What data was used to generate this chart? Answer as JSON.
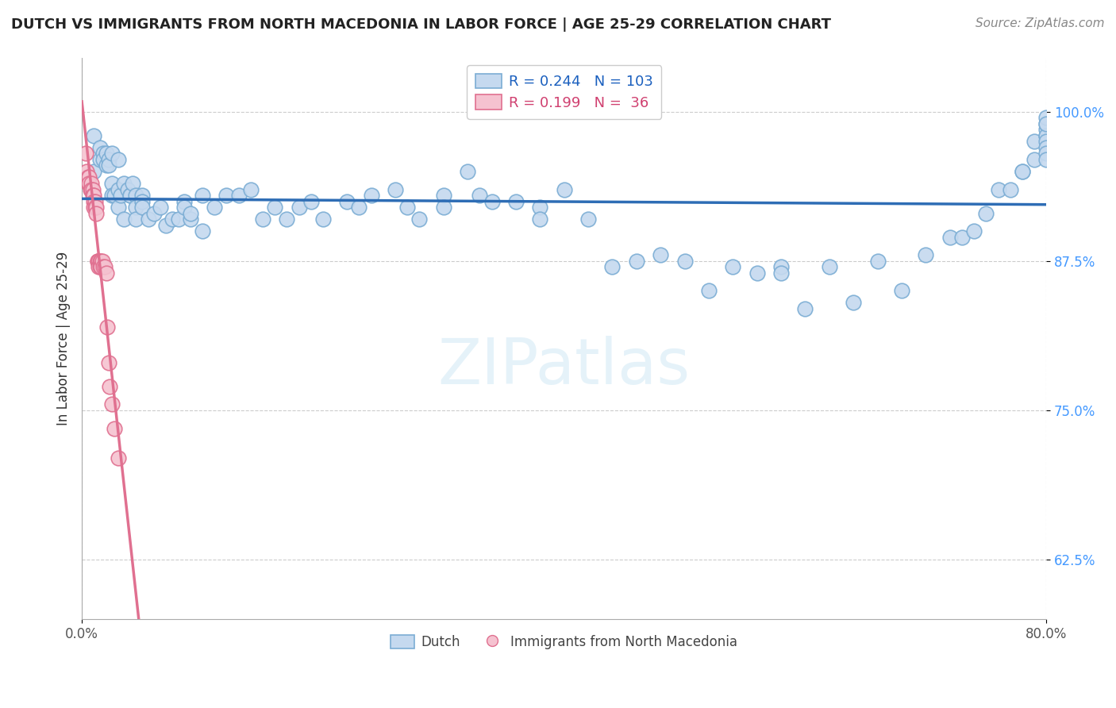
{
  "title": "DUTCH VS IMMIGRANTS FROM NORTH MACEDONIA IN LABOR FORCE | AGE 25-29 CORRELATION CHART",
  "source": "Source: ZipAtlas.com",
  "ylabel": "In Labor Force | Age 25-29",
  "x_range": [
    0.0,
    0.8
  ],
  "y_range": [
    0.575,
    1.045
  ],
  "legend_dutch_R": "0.244",
  "legend_dutch_N": "103",
  "legend_mac_R": "0.199",
  "legend_mac_N": " 36",
  "dutch_color": "#c5d9ef",
  "dutch_edge_color": "#7badd4",
  "dutch_trendline_color": "#2e6db5",
  "mac_color": "#f5c2d0",
  "mac_edge_color": "#e07090",
  "mac_trendline_color": "#e07090",
  "watermark": "ZIPatlas",
  "grid_color": "#cccccc",
  "background_color": "#ffffff",
  "dutch_x": [
    0.01,
    0.01,
    0.015,
    0.015,
    0.018,
    0.018,
    0.02,
    0.02,
    0.022,
    0.022,
    0.025,
    0.025,
    0.025,
    0.027,
    0.03,
    0.03,
    0.03,
    0.032,
    0.035,
    0.035,
    0.038,
    0.04,
    0.04,
    0.042,
    0.045,
    0.045,
    0.045,
    0.05,
    0.05,
    0.05,
    0.055,
    0.06,
    0.065,
    0.07,
    0.075,
    0.08,
    0.085,
    0.085,
    0.09,
    0.09,
    0.1,
    0.1,
    0.11,
    0.12,
    0.13,
    0.14,
    0.15,
    0.16,
    0.17,
    0.18,
    0.19,
    0.2,
    0.22,
    0.23,
    0.24,
    0.26,
    0.27,
    0.28,
    0.3,
    0.3,
    0.32,
    0.33,
    0.34,
    0.36,
    0.38,
    0.38,
    0.4,
    0.42,
    0.44,
    0.46,
    0.48,
    0.5,
    0.52,
    0.54,
    0.56,
    0.58,
    0.58,
    0.6,
    0.62,
    0.64,
    0.66,
    0.68,
    0.7,
    0.72,
    0.73,
    0.74,
    0.75,
    0.76,
    0.77,
    0.78,
    0.78,
    0.79,
    0.79,
    0.8,
    0.8,
    0.8,
    0.8,
    0.8,
    0.8,
    0.8,
    0.8,
    0.8,
    0.8
  ],
  "dutch_y": [
    0.98,
    0.95,
    0.97,
    0.96,
    0.965,
    0.96,
    0.965,
    0.955,
    0.96,
    0.955,
    0.965,
    0.94,
    0.93,
    0.93,
    0.96,
    0.935,
    0.92,
    0.93,
    0.94,
    0.91,
    0.935,
    0.93,
    0.93,
    0.94,
    0.93,
    0.92,
    0.91,
    0.93,
    0.925,
    0.92,
    0.91,
    0.915,
    0.92,
    0.905,
    0.91,
    0.91,
    0.925,
    0.92,
    0.91,
    0.915,
    0.93,
    0.9,
    0.92,
    0.93,
    0.93,
    0.935,
    0.91,
    0.92,
    0.91,
    0.92,
    0.925,
    0.91,
    0.925,
    0.92,
    0.93,
    0.935,
    0.92,
    0.91,
    0.93,
    0.92,
    0.95,
    0.93,
    0.925,
    0.925,
    0.92,
    0.91,
    0.935,
    0.91,
    0.87,
    0.875,
    0.88,
    0.875,
    0.85,
    0.87,
    0.865,
    0.87,
    0.865,
    0.835,
    0.87,
    0.84,
    0.875,
    0.85,
    0.88,
    0.895,
    0.895,
    0.9,
    0.915,
    0.935,
    0.935,
    0.95,
    0.95,
    0.96,
    0.975,
    0.98,
    0.985,
    0.99,
    0.98,
    0.995,
    0.99,
    0.975,
    0.97,
    0.965,
    0.96
  ],
  "mac_x": [
    0.003,
    0.004,
    0.005,
    0.005,
    0.006,
    0.006,
    0.007,
    0.008,
    0.008,
    0.009,
    0.009,
    0.01,
    0.01,
    0.01,
    0.011,
    0.011,
    0.012,
    0.012,
    0.013,
    0.013,
    0.014,
    0.014,
    0.015,
    0.015,
    0.016,
    0.016,
    0.017,
    0.018,
    0.019,
    0.02,
    0.021,
    0.022,
    0.023,
    0.025,
    0.027,
    0.03
  ],
  "mac_y": [
    0.965,
    0.95,
    0.945,
    0.94,
    0.945,
    0.94,
    0.935,
    0.94,
    0.935,
    0.935,
    0.93,
    0.93,
    0.925,
    0.92,
    0.925,
    0.92,
    0.92,
    0.915,
    0.875,
    0.875,
    0.875,
    0.87,
    0.875,
    0.87,
    0.875,
    0.87,
    0.875,
    0.87,
    0.87,
    0.865,
    0.82,
    0.79,
    0.77,
    0.755,
    0.735,
    0.71
  ]
}
